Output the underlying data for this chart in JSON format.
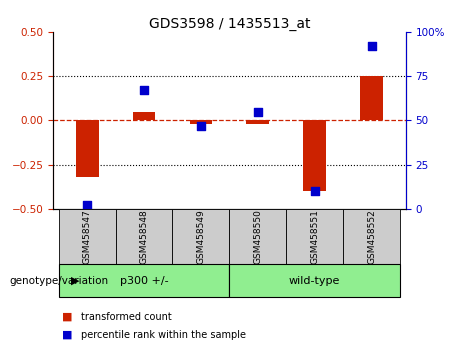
{
  "title": "GDS3598 / 1435513_at",
  "samples": [
    "GSM458547",
    "GSM458548",
    "GSM458549",
    "GSM458550",
    "GSM458551",
    "GSM458552"
  ],
  "red_values": [
    -0.32,
    0.05,
    -0.02,
    -0.02,
    -0.4,
    0.25
  ],
  "blue_values": [
    2,
    67,
    47,
    55,
    10,
    92
  ],
  "ylim_left": [
    -0.5,
    0.5
  ],
  "ylim_right": [
    0,
    100
  ],
  "yticks_left": [
    -0.5,
    -0.25,
    0,
    0.25,
    0.5
  ],
  "yticks_right": [
    0,
    25,
    50,
    75,
    100
  ],
  "hlines": [
    0.25,
    -0.25
  ],
  "group_defs": [
    {
      "indices": [
        0,
        1,
        2
      ],
      "label": "p300 +/-",
      "color": "#90ee90"
    },
    {
      "indices": [
        3,
        4,
        5
      ],
      "label": "wild-type",
      "color": "#90ee90"
    }
  ],
  "group_label": "genotype/variation",
  "legend_items": [
    {
      "label": "transformed count",
      "color": "#cc2200"
    },
    {
      "label": "percentile rank within the sample",
      "color": "#0000cc"
    }
  ],
  "bar_color": "#cc2200",
  "dot_color": "#0000cc",
  "bar_width": 0.4,
  "dot_size": 28,
  "title_fontsize": 10,
  "left_axis_color": "#cc2200",
  "right_axis_color": "#0000cc",
  "sample_box_color": "#cccccc",
  "plot_bg": "#ffffff"
}
